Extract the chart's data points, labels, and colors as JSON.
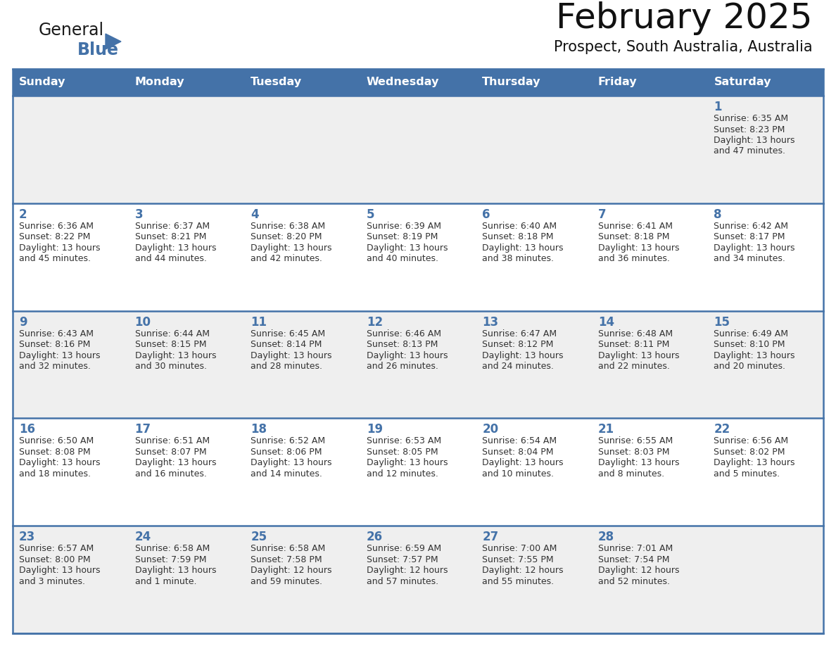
{
  "title": "February 2025",
  "subtitle": "Prospect, South Australia, Australia",
  "header_bg": "#4472a8",
  "header_text_color": "#ffffff",
  "cell_bg_odd": "#efefef",
  "cell_bg_even": "#ffffff",
  "day_number_color": "#4472a8",
  "text_color": "#333333",
  "border_color": "#4472a8",
  "days_of_week": [
    "Sunday",
    "Monday",
    "Tuesday",
    "Wednesday",
    "Thursday",
    "Friday",
    "Saturday"
  ],
  "logo_general_color": "#1a1a1a",
  "logo_blue_color": "#4472a8",
  "calendar_data": [
    [
      null,
      null,
      null,
      null,
      null,
      null,
      {
        "day": "1",
        "sunrise": "6:35 AM",
        "sunset": "8:23 PM",
        "daylight_line1": "Daylight: 13 hours",
        "daylight_line2": "and 47 minutes."
      }
    ],
    [
      {
        "day": "2",
        "sunrise": "6:36 AM",
        "sunset": "8:22 PM",
        "daylight_line1": "Daylight: 13 hours",
        "daylight_line2": "and 45 minutes."
      },
      {
        "day": "3",
        "sunrise": "6:37 AM",
        "sunset": "8:21 PM",
        "daylight_line1": "Daylight: 13 hours",
        "daylight_line2": "and 44 minutes."
      },
      {
        "day": "4",
        "sunrise": "6:38 AM",
        "sunset": "8:20 PM",
        "daylight_line1": "Daylight: 13 hours",
        "daylight_line2": "and 42 minutes."
      },
      {
        "day": "5",
        "sunrise": "6:39 AM",
        "sunset": "8:19 PM",
        "daylight_line1": "Daylight: 13 hours",
        "daylight_line2": "and 40 minutes."
      },
      {
        "day": "6",
        "sunrise": "6:40 AM",
        "sunset": "8:18 PM",
        "daylight_line1": "Daylight: 13 hours",
        "daylight_line2": "and 38 minutes."
      },
      {
        "day": "7",
        "sunrise": "6:41 AM",
        "sunset": "8:18 PM",
        "daylight_line1": "Daylight: 13 hours",
        "daylight_line2": "and 36 minutes."
      },
      {
        "day": "8",
        "sunrise": "6:42 AM",
        "sunset": "8:17 PM",
        "daylight_line1": "Daylight: 13 hours",
        "daylight_line2": "and 34 minutes."
      }
    ],
    [
      {
        "day": "9",
        "sunrise": "6:43 AM",
        "sunset": "8:16 PM",
        "daylight_line1": "Daylight: 13 hours",
        "daylight_line2": "and 32 minutes."
      },
      {
        "day": "10",
        "sunrise": "6:44 AM",
        "sunset": "8:15 PM",
        "daylight_line1": "Daylight: 13 hours",
        "daylight_line2": "and 30 minutes."
      },
      {
        "day": "11",
        "sunrise": "6:45 AM",
        "sunset": "8:14 PM",
        "daylight_line1": "Daylight: 13 hours",
        "daylight_line2": "and 28 minutes."
      },
      {
        "day": "12",
        "sunrise": "6:46 AM",
        "sunset": "8:13 PM",
        "daylight_line1": "Daylight: 13 hours",
        "daylight_line2": "and 26 minutes."
      },
      {
        "day": "13",
        "sunrise": "6:47 AM",
        "sunset": "8:12 PM",
        "daylight_line1": "Daylight: 13 hours",
        "daylight_line2": "and 24 minutes."
      },
      {
        "day": "14",
        "sunrise": "6:48 AM",
        "sunset": "8:11 PM",
        "daylight_line1": "Daylight: 13 hours",
        "daylight_line2": "and 22 minutes."
      },
      {
        "day": "15",
        "sunrise": "6:49 AM",
        "sunset": "8:10 PM",
        "daylight_line1": "Daylight: 13 hours",
        "daylight_line2": "and 20 minutes."
      }
    ],
    [
      {
        "day": "16",
        "sunrise": "6:50 AM",
        "sunset": "8:08 PM",
        "daylight_line1": "Daylight: 13 hours",
        "daylight_line2": "and 18 minutes."
      },
      {
        "day": "17",
        "sunrise": "6:51 AM",
        "sunset": "8:07 PM",
        "daylight_line1": "Daylight: 13 hours",
        "daylight_line2": "and 16 minutes."
      },
      {
        "day": "18",
        "sunrise": "6:52 AM",
        "sunset": "8:06 PM",
        "daylight_line1": "Daylight: 13 hours",
        "daylight_line2": "and 14 minutes."
      },
      {
        "day": "19",
        "sunrise": "6:53 AM",
        "sunset": "8:05 PM",
        "daylight_line1": "Daylight: 13 hours",
        "daylight_line2": "and 12 minutes."
      },
      {
        "day": "20",
        "sunrise": "6:54 AM",
        "sunset": "8:04 PM",
        "daylight_line1": "Daylight: 13 hours",
        "daylight_line2": "and 10 minutes."
      },
      {
        "day": "21",
        "sunrise": "6:55 AM",
        "sunset": "8:03 PM",
        "daylight_line1": "Daylight: 13 hours",
        "daylight_line2": "and 8 minutes."
      },
      {
        "day": "22",
        "sunrise": "6:56 AM",
        "sunset": "8:02 PM",
        "daylight_line1": "Daylight: 13 hours",
        "daylight_line2": "and 5 minutes."
      }
    ],
    [
      {
        "day": "23",
        "sunrise": "6:57 AM",
        "sunset": "8:00 PM",
        "daylight_line1": "Daylight: 13 hours",
        "daylight_line2": "and 3 minutes."
      },
      {
        "day": "24",
        "sunrise": "6:58 AM",
        "sunset": "7:59 PM",
        "daylight_line1": "Daylight: 13 hours",
        "daylight_line2": "and 1 minute."
      },
      {
        "day": "25",
        "sunrise": "6:58 AM",
        "sunset": "7:58 PM",
        "daylight_line1": "Daylight: 12 hours",
        "daylight_line2": "and 59 minutes."
      },
      {
        "day": "26",
        "sunrise": "6:59 AM",
        "sunset": "7:57 PM",
        "daylight_line1": "Daylight: 12 hours",
        "daylight_line2": "and 57 minutes."
      },
      {
        "day": "27",
        "sunrise": "7:00 AM",
        "sunset": "7:55 PM",
        "daylight_line1": "Daylight: 12 hours",
        "daylight_line2": "and 55 minutes."
      },
      {
        "day": "28",
        "sunrise": "7:01 AM",
        "sunset": "7:54 PM",
        "daylight_line1": "Daylight: 12 hours",
        "daylight_line2": "and 52 minutes."
      },
      null
    ]
  ]
}
